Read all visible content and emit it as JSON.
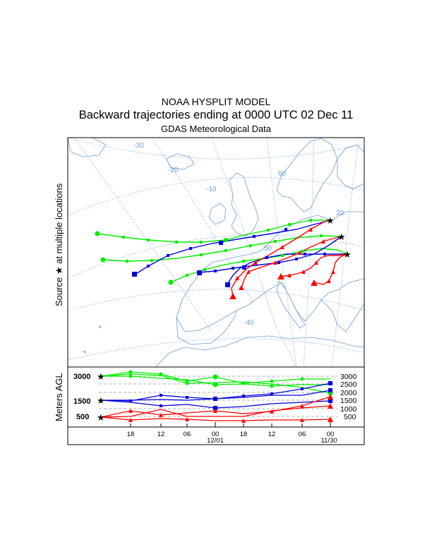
{
  "header": {
    "title": "NOAA HYSPLIT MODEL",
    "subtitle": "Backward trajectories ending at 0000 UTC 02 Dec 11",
    "data_source": "GDAS Meteorological Data"
  },
  "side_label": {
    "prefix": "Source",
    "star": "★",
    "suffix": "at multiple locations"
  },
  "height_axis_label": "Meters AGL",
  "map": {
    "lon_labels": [
      "-30",
      "-20",
      "-10",
      "-40"
    ],
    "lat_labels": [
      "60",
      "50",
      "20"
    ]
  },
  "left_heights": [
    "3000",
    "1500",
    "500"
  ],
  "right_heights": [
    "3000",
    "2500",
    "2000",
    "1500",
    "1000",
    "500"
  ],
  "time_ticks": [
    "18",
    "12",
    "06",
    "00",
    "18",
    "12",
    "06",
    "00"
  ],
  "date_labels": [
    "12/01",
    "11/30"
  ],
  "colors": {
    "map_lines": "#6f9fd0",
    "low": "#ff0000",
    "mid": "#0000dd",
    "high": "#00ee00"
  }
}
